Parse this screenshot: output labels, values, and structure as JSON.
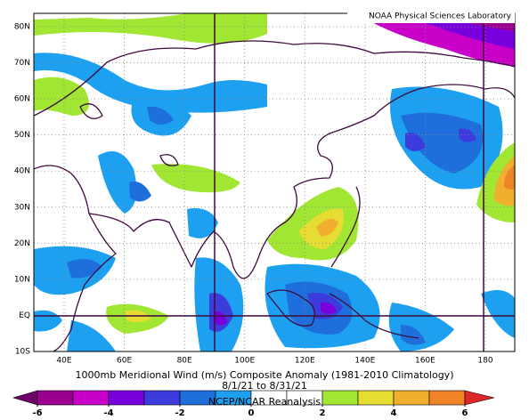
{
  "header": {
    "credit": "NOAA Physical Sciences Laboratory"
  },
  "map": {
    "lat_labels": [
      "80N",
      "70N",
      "60N",
      "50N",
      "40N",
      "30N",
      "20N",
      "10N",
      "EQ",
      "10S"
    ],
    "lon_labels": [
      "40E",
      "60E",
      "80E",
      "100E",
      "120E",
      "140E",
      "160E",
      "180"
    ]
  },
  "caption": {
    "title": "1000mb Meridional Wind (m/s) Composite Anomaly (1981-2010 Climatology)",
    "dates": "8/1/21 to 8/31/21",
    "source": "NCEP/NCAR Reanalysis"
  },
  "colorbar": {
    "colors": [
      "#9b0091",
      "#c800c8",
      "#7800dc",
      "#3c3cdc",
      "#1e6edc",
      "#1ea0f0",
      "#ffffff",
      "#ffffff",
      "#a0e632",
      "#e6dc32",
      "#f0af2d",
      "#f08228"
    ],
    "low_color": "#6e0069",
    "high_color": "#dc2828",
    "ticks": [
      -6,
      -4,
      -2,
      0,
      2,
      4,
      6
    ]
  }
}
